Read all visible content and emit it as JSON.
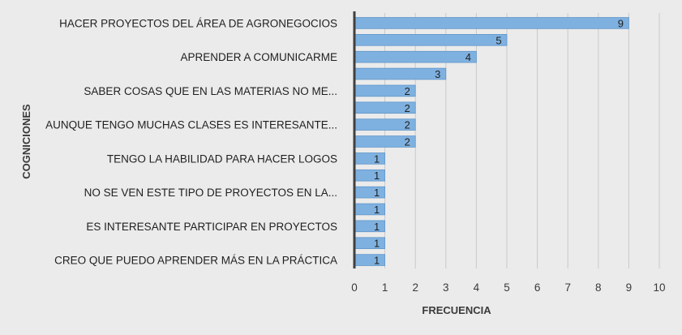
{
  "chart_data": {
    "type": "bar",
    "orientation": "horizontal",
    "xlabel": "FRECUENCIA",
    "ylabel": "COGNICIONES",
    "xlim": [
      0,
      10
    ],
    "xticks": [
      0,
      1,
      2,
      3,
      4,
      5,
      6,
      7,
      8,
      9,
      10
    ],
    "grid": true,
    "bar_color": "#7fb1e0",
    "background": "#ebebeb",
    "categories": [
      "HACER PROYECTOS DEL ÁREA DE AGRONEGOCIOS",
      "",
      "APRENDER A COMUNICARME",
      "",
      "SABER COSAS QUE EN LAS MATERIAS NO ME...",
      "",
      "AUNQUE TENGO MUCHAS CLASES ES INTERESANTE...",
      "",
      "TENGO LA HABILIDAD PARA HACER LOGOS",
      "",
      "NO SE VEN ESTE TIPO DE PROYECTOS EN LA...",
      "",
      "ES INTERESANTE PARTICIPAR EN PROYECTOS",
      "",
      "CREO QUE PUEDO APRENDER MÁS EN LA PRÁCTICA"
    ],
    "values": [
      9,
      5,
      4,
      3,
      2,
      2,
      2,
      2,
      1,
      1,
      1,
      1,
      1,
      1,
      1
    ]
  }
}
